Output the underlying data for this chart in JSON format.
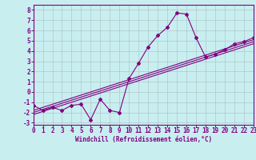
{
  "x_data": [
    0,
    1,
    2,
    3,
    4,
    5,
    6,
    7,
    8,
    9,
    10,
    11,
    12,
    13,
    14,
    15,
    16,
    17,
    18,
    19,
    20,
    21,
    22,
    23
  ],
  "y_main": [
    -1.3,
    -1.8,
    -1.5,
    -1.8,
    -1.3,
    -1.2,
    -2.7,
    -0.7,
    -1.8,
    -2.0,
    1.3,
    2.8,
    4.4,
    5.5,
    6.3,
    7.7,
    7.6,
    5.3,
    3.4,
    3.7,
    4.1,
    4.7,
    4.9,
    5.3
  ],
  "y_line1": [
    -2.0,
    -1.7,
    -1.4,
    -1.1,
    -0.8,
    -0.5,
    -0.2,
    0.1,
    0.4,
    0.7,
    1.0,
    1.3,
    1.6,
    1.9,
    2.2,
    2.5,
    2.8,
    3.1,
    3.4,
    3.7,
    4.0,
    4.3,
    4.6,
    4.9
  ],
  "y_line2": [
    -2.2,
    -1.9,
    -1.6,
    -1.3,
    -1.0,
    -0.7,
    -0.4,
    -0.1,
    0.2,
    0.5,
    0.8,
    1.1,
    1.4,
    1.7,
    2.0,
    2.3,
    2.6,
    2.9,
    3.2,
    3.5,
    3.8,
    4.1,
    4.4,
    4.7
  ],
  "y_line3": [
    -1.8,
    -1.5,
    -1.2,
    -0.9,
    -0.6,
    -0.3,
    0.0,
    0.3,
    0.6,
    0.9,
    1.2,
    1.5,
    1.8,
    2.1,
    2.4,
    2.7,
    3.0,
    3.3,
    3.6,
    3.9,
    4.2,
    4.5,
    4.8,
    5.1
  ],
  "color": "#800080",
  "bg_color": "#c8eef0",
  "grid_color": "#b0c8c8",
  "xlabel": "Windchill (Refroidissement éolien,°C)",
  "ylim": [
    -3.2,
    8.5
  ],
  "xlim": [
    0,
    23
  ],
  "yticks": [
    -3,
    -2,
    -1,
    0,
    1,
    2,
    3,
    4,
    5,
    6,
    7,
    8
  ],
  "xticks": [
    0,
    1,
    2,
    3,
    4,
    5,
    6,
    7,
    8,
    9,
    10,
    11,
    12,
    13,
    14,
    15,
    16,
    17,
    18,
    19,
    20,
    21,
    22,
    23
  ],
  "marker": "D",
  "marker_size": 2.0,
  "line_width": 0.8,
  "tick_fontsize": 5.5,
  "xlabel_fontsize": 5.5
}
